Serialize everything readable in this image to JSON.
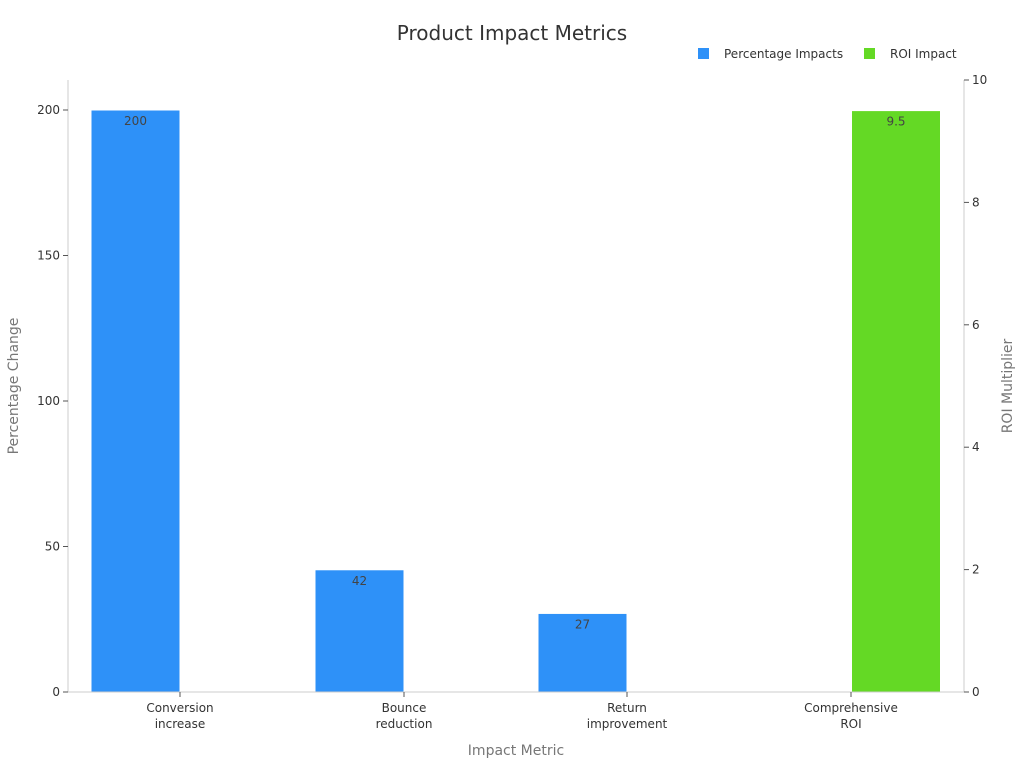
{
  "chart_data": {
    "type": "bar",
    "title": "Product Impact Metrics",
    "xlabel": "Impact Metric",
    "ylabel": "Percentage Change",
    "y2label": "ROI Multiplier",
    "categories": [
      [
        "Conversion",
        "increase"
      ],
      [
        "Bounce",
        "reduction"
      ],
      [
        "Return",
        "improvement"
      ],
      [
        "Comprehensive",
        "ROI"
      ]
    ],
    "ylim": [
      0,
      210
    ],
    "y2lim": [
      0,
      10
    ],
    "yticks": [
      0,
      50,
      100,
      150,
      200
    ],
    "y2ticks": [
      0,
      2,
      4,
      6,
      8,
      10
    ],
    "grid": false,
    "legend_position": "top-right",
    "series": [
      {
        "name": "Percentage Impacts",
        "axis": "left",
        "color": "#2e91f8",
        "values": [
          200,
          42,
          27,
          null
        ],
        "labels": [
          "200",
          "42",
          "27",
          ""
        ]
      },
      {
        "name": "ROI Impact",
        "axis": "right",
        "color": "#64d925",
        "values": [
          null,
          null,
          null,
          9.5
        ],
        "labels": [
          "",
          "",
          "",
          "9.5"
        ]
      }
    ]
  }
}
